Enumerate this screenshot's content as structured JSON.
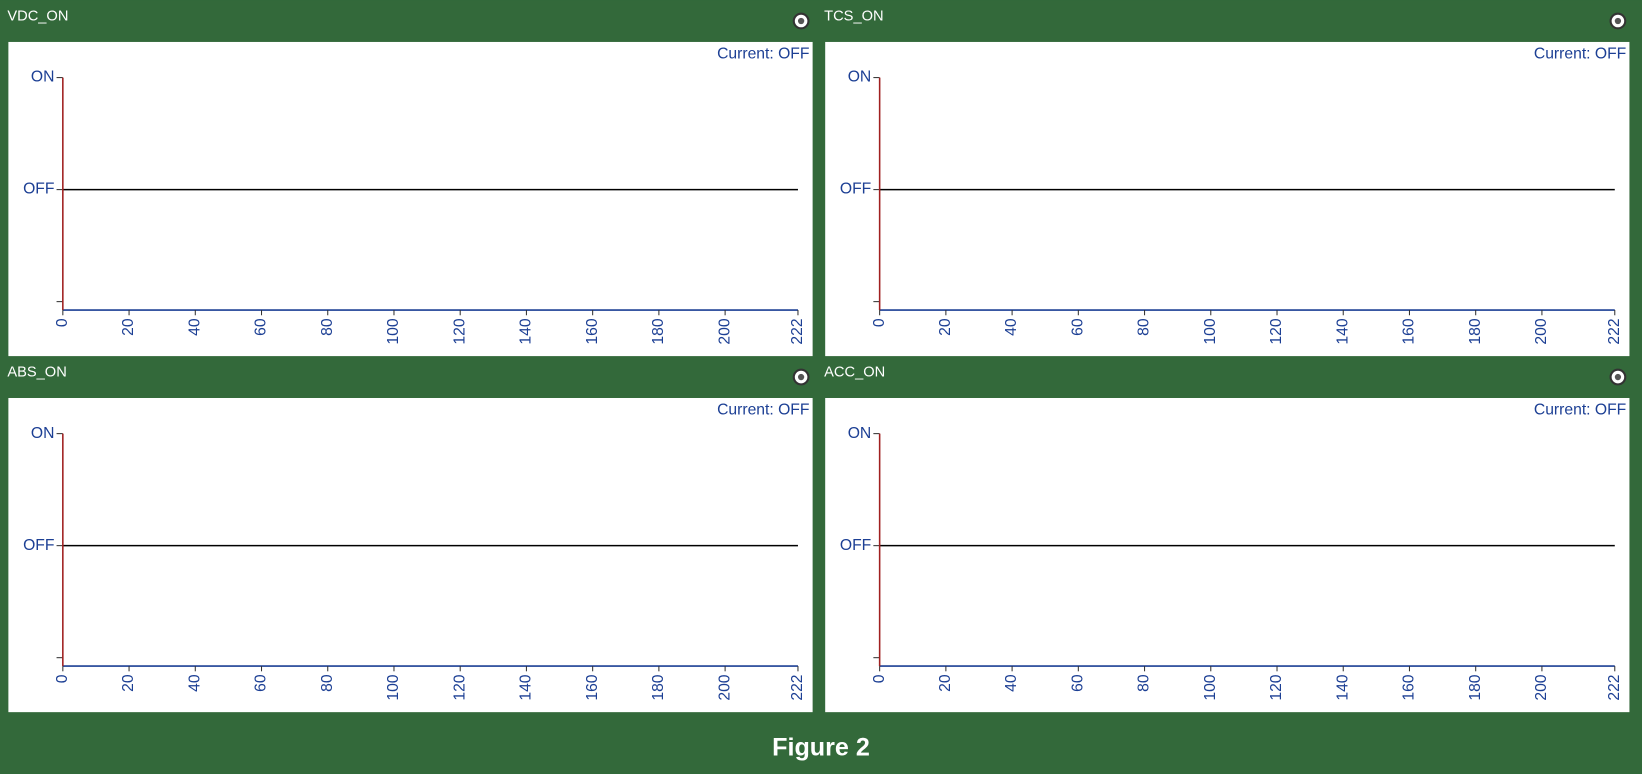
{
  "chart_data": [
    {
      "type": "line",
      "title": "VDC_ON",
      "status": "Current: OFF",
      "x": [
        0,
        222
      ],
      "series": [
        {
          "color": "#000000",
          "values": [
            0,
            0
          ]
        }
      ],
      "xlim": [
        0,
        222
      ],
      "xticks": [
        0,
        20,
        40,
        60,
        80,
        100,
        120,
        140,
        160,
        180,
        200,
        222
      ],
      "ylim": [
        -1.075,
        1.075
      ],
      "yticks": [
        {
          "value": 1,
          "label": "ON"
        },
        {
          "value": 0,
          "label": "OFF"
        },
        {
          "value": -1,
          "label": null
        }
      ]
    },
    {
      "type": "line",
      "title": "TCS_ON",
      "status": "Current: OFF",
      "x": [
        0,
        222
      ],
      "series": [
        {
          "color": "#000000",
          "values": [
            0,
            0
          ]
        }
      ],
      "xlim": [
        0,
        222
      ],
      "xticks": [
        0,
        20,
        40,
        60,
        80,
        100,
        120,
        140,
        160,
        180,
        200,
        222
      ],
      "ylim": [
        -1.075,
        1.075
      ],
      "yticks": [
        {
          "value": 1,
          "label": "ON"
        },
        {
          "value": 0,
          "label": "OFF"
        },
        {
          "value": -1,
          "label": null
        }
      ]
    },
    {
      "type": "line",
      "title": "ABS_ON",
      "status": "Current: OFF",
      "x": [
        0,
        222
      ],
      "series": [
        {
          "color": "#000000",
          "values": [
            0,
            0
          ]
        }
      ],
      "xlim": [
        0,
        222
      ],
      "xticks": [
        0,
        20,
        40,
        60,
        80,
        100,
        120,
        140,
        160,
        180,
        200,
        222
      ],
      "ylim": [
        -1.075,
        1.075
      ],
      "yticks": [
        {
          "value": 1,
          "label": "ON"
        },
        {
          "value": 0,
          "label": "OFF"
        },
        {
          "value": -1,
          "label": null
        }
      ]
    },
    {
      "type": "line",
      "title": "ACC_ON",
      "status": "Current: OFF",
      "x": [
        0,
        222
      ],
      "series": [
        {
          "color": "#000000",
          "values": [
            0,
            0
          ]
        }
      ],
      "xlim": [
        0,
        222
      ],
      "xticks": [
        0,
        20,
        40,
        60,
        80,
        100,
        120,
        140,
        160,
        180,
        200,
        222
      ],
      "ylim": [
        -1.075,
        1.075
      ],
      "yticks": [
        {
          "value": 1,
          "label": "ON"
        },
        {
          "value": 0,
          "label": "OFF"
        },
        {
          "value": -1,
          "label": null
        }
      ]
    }
  ],
  "caption": "Figure 2"
}
